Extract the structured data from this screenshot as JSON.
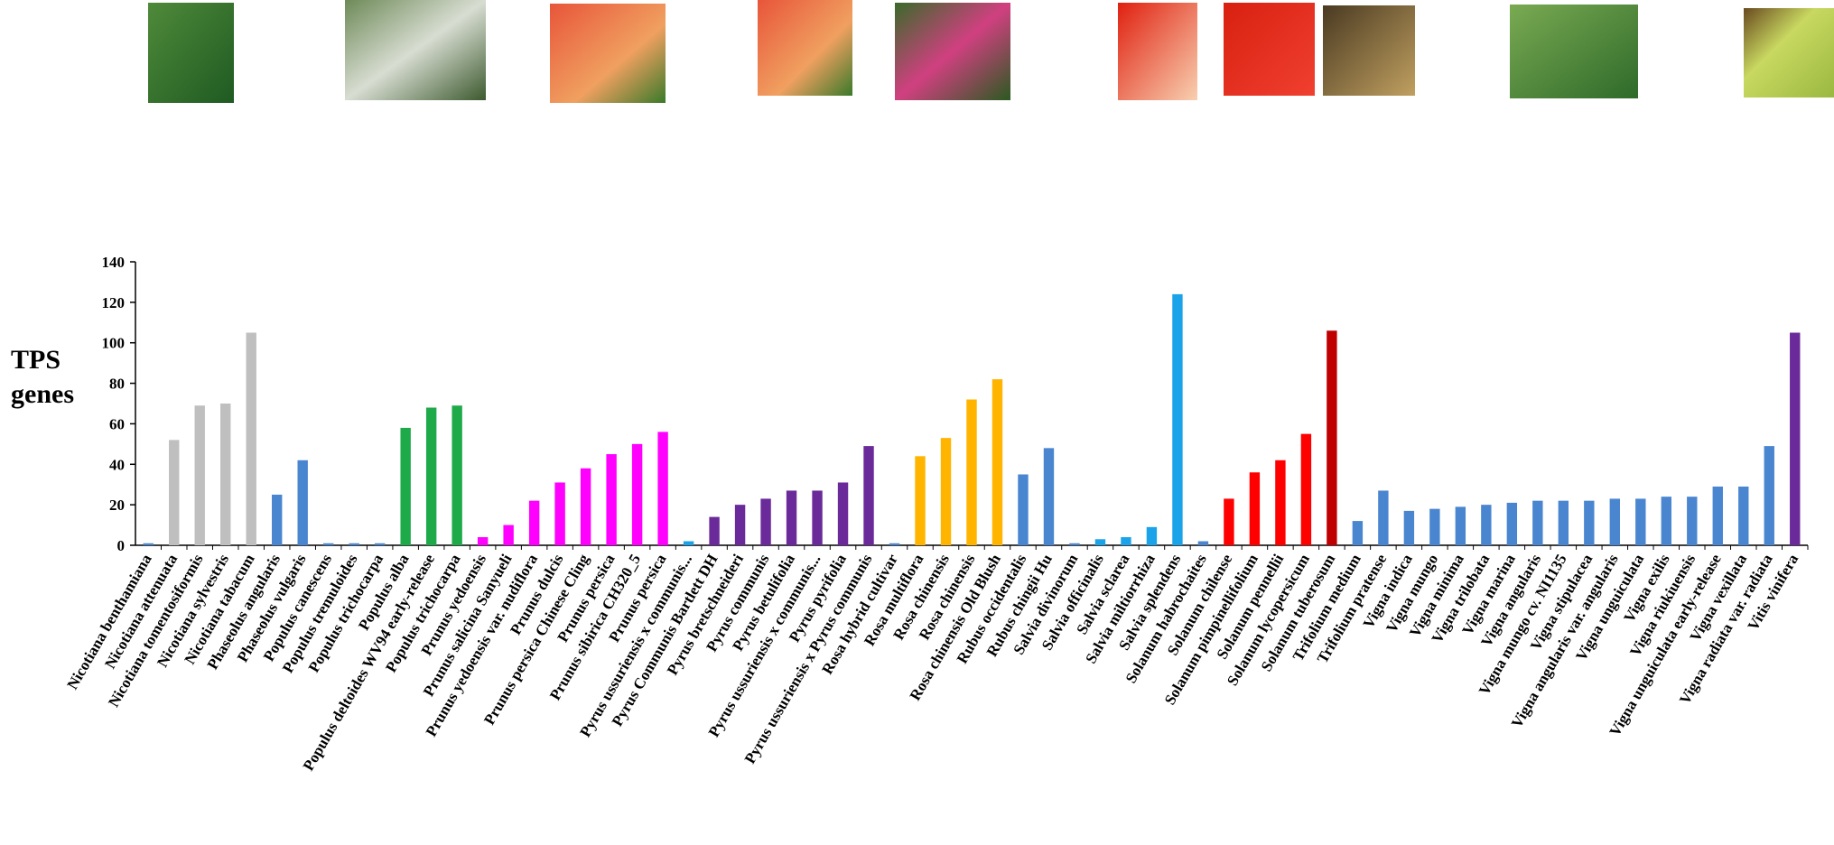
{
  "chart_data": {
    "type": "bar",
    "y_label": "TPS genes",
    "categories": [
      "Nicotiana benthamiana",
      "Nicotiana attenuata",
      "Nicotiana tomentosiformis",
      "Nicotiana sylvestris",
      "Nicotiana tabacum",
      "Phaseolus angularis",
      "Phaseolus vulgaris",
      "Populus canescens",
      "Populus tremuloides",
      "Populus trichocarpa",
      "Populus alba",
      "Populus deltoides WV94 early-release",
      "Populus trichocarpa",
      "Prunus yedoensis",
      "Prunus salicina Sanyueli",
      "Prunus yedoensis var. nudiflora",
      "Prunus dulcis",
      "Prunus persica Chinese Cling",
      "Prunus persica",
      "Prunus sibirica CH320_5",
      "Prunus persica",
      "Pyrus ussuriensis x communis...",
      "Pyrus Communis Bartlett DH",
      "Pyrus bretschneideri",
      "Pyrus communis",
      "Pyrus betulifolia",
      "Pyrus ussuriensis x communis...",
      "Pyrus pyrifolia",
      "Pyrus ussuriensis x Pyrus communis",
      "Rosa hybrid cultivar",
      "Rosa multiflora",
      "Rosa chinensis",
      "Rosa chinensis",
      "Rosa chinensis Old Blush",
      "Rubus occidentalis",
      "Rubus chingii Hu",
      "Salvia divinorum",
      "Salvia officinalis",
      "Salvia sclarea",
      "Salvia miltiorrhiza",
      "Salvia splendens",
      "Solanum habrochaites",
      "Solanum chilense",
      "Solanum pimpinellifolium",
      "Solanum pennellii",
      "Solanum lycopersicum",
      "Solanum tuberosum",
      "Trifolium medium",
      "Trifolium pratense",
      "Vigna indica",
      "Vigna mungo",
      "Vigna minima",
      "Vigna trilobata",
      "Vigna marina",
      "Vigna angularis",
      "Vigna mungo cv. NI1135",
      "Vigna stipulacea",
      "Vigna angularis var. angularis",
      "Vigna unguiculata",
      "Vigna exilis",
      "Vigna riukiuensis",
      "Vigna unguiculata early-release",
      "Vigna vexillata",
      "Vigna radiata var. radiata",
      "Vitis vinifera"
    ],
    "values": [
      1,
      52,
      69,
      70,
      105,
      25,
      42,
      1,
      1,
      1,
      58,
      68,
      69,
      4,
      10,
      22,
      31,
      38,
      45,
      50,
      56,
      2,
      14,
      20,
      23,
      27,
      27,
      31,
      49,
      1,
      44,
      53,
      72,
      82,
      35,
      48,
      1,
      3,
      4,
      9,
      124,
      2,
      23,
      36,
      42,
      55,
      106,
      12,
      27,
      17,
      18,
      19,
      20,
      21,
      22,
      22,
      22,
      23,
      23,
      24,
      24,
      29,
      29,
      49,
      105
    ],
    "colors": [
      "#4a86d0",
      "#bfbfbf",
      "#bfbfbf",
      "#bfbfbf",
      "#bfbfbf",
      "#4a86d0",
      "#4a86d0",
      "#4a86d0",
      "#4a86d0",
      "#4a86d0",
      "#1faa4a",
      "#1faa4a",
      "#1faa4a",
      "#ff00ff",
      "#ff00ff",
      "#ff00ff",
      "#ff00ff",
      "#ff00ff",
      "#ff00ff",
      "#ff00ff",
      "#ff00ff",
      "#1aa3e8",
      "#6a2a9a",
      "#6a2a9a",
      "#6a2a9a",
      "#6a2a9a",
      "#6a2a9a",
      "#6a2a9a",
      "#6a2a9a",
      "#4a86d0",
      "#ffb400",
      "#ffb400",
      "#ffb400",
      "#ffb400",
      "#4a86d0",
      "#4a86d0",
      "#4a86d0",
      "#1aa3e8",
      "#1aa3e8",
      "#1aa3e8",
      "#1aa3e8",
      "#4a86d0",
      "#ff0000",
      "#ff0000",
      "#ff0000",
      "#ff0000",
      "#c00000",
      "#4a86d0",
      "#4a86d0",
      "#4a86d0",
      "#4a86d0",
      "#4a86d0",
      "#4a86d0",
      "#4a86d0",
      "#4a86d0",
      "#4a86d0",
      "#4a86d0",
      "#4a86d0",
      "#4a86d0",
      "#4a86d0",
      "#4a86d0",
      "#4a86d0",
      "#4a86d0",
      "#4a86d0",
      "#6a2a9a"
    ],
    "ylim": [
      0,
      140
    ],
    "yticks": [
      0,
      20,
      40,
      60,
      80,
      100,
      120,
      140
    ],
    "grid": false
  }
}
